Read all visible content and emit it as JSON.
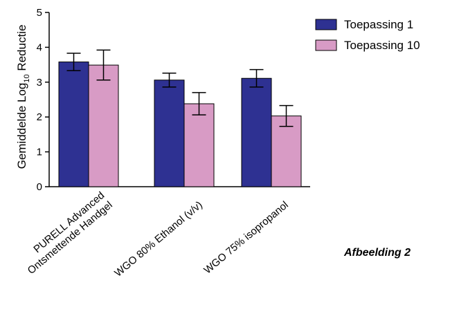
{
  "chart_data": {
    "type": "bar",
    "categories": [
      [
        "PURELL Advanced",
        "Ontsmettende Handgel"
      ],
      [
        "WGO 80% Ethanol (v/v)"
      ],
      [
        "WGO 75% isopropanol"
      ]
    ],
    "series": [
      {
        "name": "Toepassing 1",
        "color": "#2e3192",
        "values": [
          3.58,
          3.06,
          3.11
        ],
        "errors": [
          0.25,
          0.2,
          0.25
        ]
      },
      {
        "name": "Toepassing 10",
        "color": "#d89bc5",
        "values": [
          3.49,
          2.38,
          2.03
        ],
        "errors": [
          0.43,
          0.32,
          0.3
        ]
      }
    ],
    "ylabel": {
      "prefix": "Gemiddelde Log",
      "subscript": "10",
      "suffix": " Reductie"
    },
    "ylim": [
      0,
      5
    ],
    "yticks": [
      "0",
      "1",
      "2",
      "3",
      "4",
      "5"
    ],
    "legend_position": "top-right"
  },
  "caption": "Afbeelding 2"
}
